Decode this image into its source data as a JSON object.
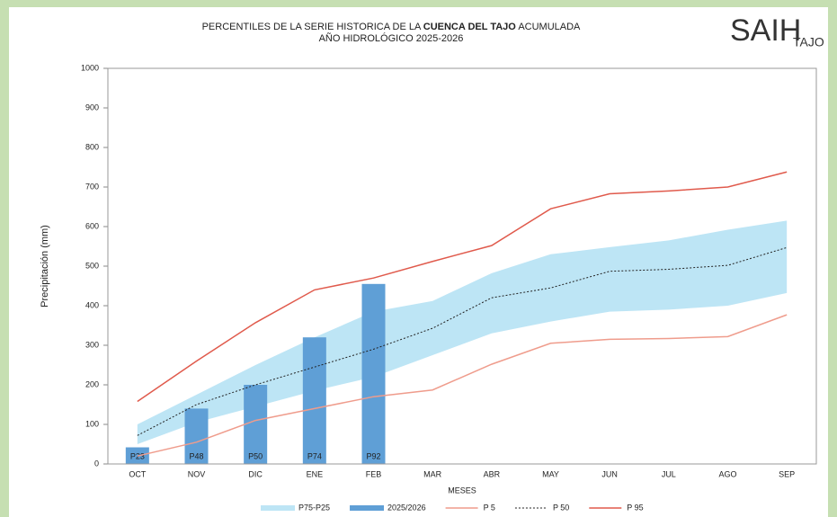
{
  "chart_data": {
    "type": "combo",
    "title": [
      "PERCENTILES DE LA SERIE HISTORICA DE LA",
      "CUENCA DEL TAJO",
      "ACUMULADA"
    ],
    "subtitle": "AÑO HIDROLÓGICO 2025-2026",
    "logo": {
      "main": "SAIH",
      "sub": "TAJO"
    },
    "xlabel": "MESES",
    "ylabel": "Precipitación (mm)",
    "categories": [
      "OCT",
      "NOV",
      "DIC",
      "ENE",
      "FEB",
      "MAR",
      "ABR",
      "MAY",
      "JUN",
      "JUL",
      "AGO",
      "SEP"
    ],
    "ylim": [
      0,
      1000
    ],
    "yticks": [
      0,
      100,
      200,
      300,
      400,
      500,
      600,
      700,
      800,
      900,
      1000
    ],
    "grid": false,
    "legend": "bottom",
    "series": [
      {
        "name": "P75-P25",
        "type": "band",
        "color": "#bde5f5",
        "values": [
          100,
          175,
          250,
          320,
          385,
          412,
          482,
          530,
          548,
          565,
          592,
          615
        ],
        "lower": [
          50,
          105,
          145,
          185,
          220,
          275,
          330,
          360,
          385,
          390,
          400,
          432
        ]
      },
      {
        "name": "2025/2026",
        "type": "bar",
        "color": "#5f9fd6",
        "values": [
          42,
          140,
          200,
          320,
          455,
          null,
          null,
          null,
          null,
          null,
          null,
          null
        ],
        "labels": [
          "P23",
          "P48",
          "P50",
          "P74",
          "P92",
          null,
          null,
          null,
          null,
          null,
          null,
          null
        ]
      },
      {
        "name": "P 5",
        "type": "line",
        "color": "#ef9c8c",
        "dash": false,
        "values": [
          20,
          55,
          110,
          140,
          170,
          187,
          252,
          305,
          315,
          317,
          322,
          377
        ]
      },
      {
        "name": "P 50",
        "type": "line",
        "color": "#222222",
        "dash": true,
        "values": [
          72,
          150,
          200,
          245,
          290,
          343,
          420,
          445,
          487,
          492,
          502,
          547
        ]
      },
      {
        "name": "P 95",
        "type": "line",
        "color": "#e05a4c",
        "dash": false,
        "values": [
          158,
          260,
          357,
          440,
          470,
          512,
          552,
          645,
          683,
          690,
          700,
          738
        ]
      }
    ]
  }
}
